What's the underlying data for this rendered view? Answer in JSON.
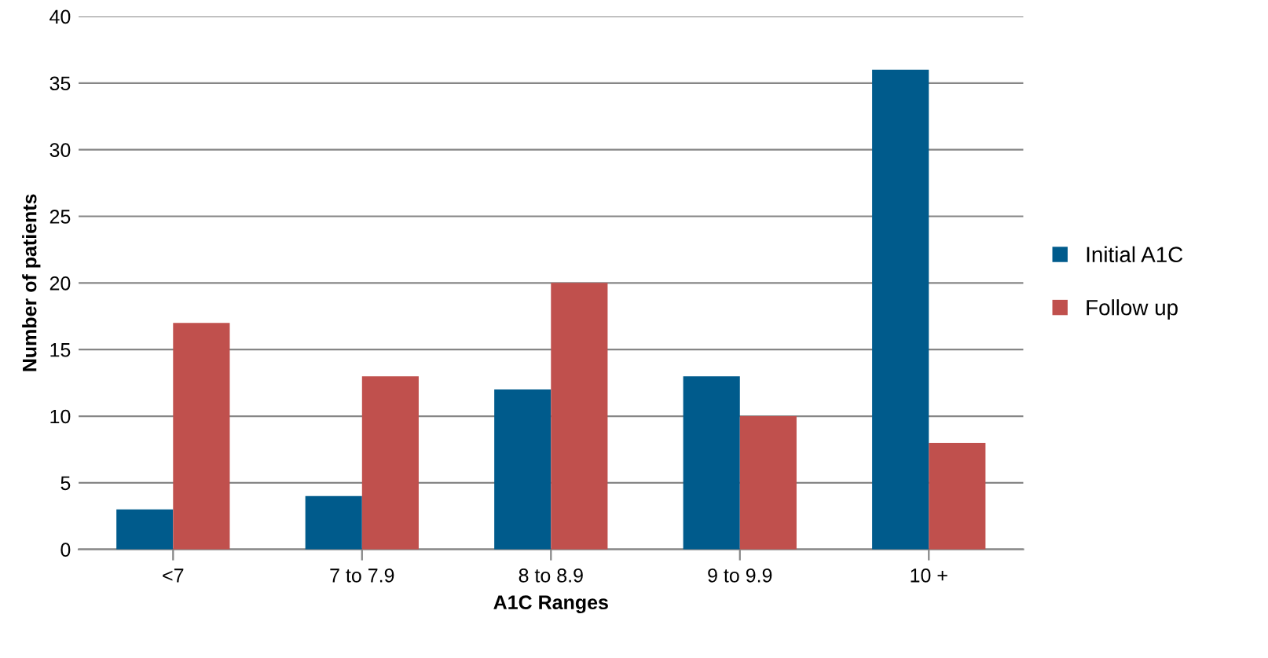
{
  "chart_data": {
    "type": "bar",
    "xlabel": "A1C Ranges",
    "ylabel": "Number of patients",
    "categories": [
      "<7",
      "7 to 7.9",
      "8 to 8.9",
      "9 to 9.9",
      "10 +"
    ],
    "series": [
      {
        "name": "Initial A1C",
        "color": "#005b8c",
        "values": [
          3,
          4,
          12,
          13,
          36
        ]
      },
      {
        "name": "Follow up",
        "color": "#c0504d",
        "values": [
          17,
          13,
          20,
          10,
          8
        ]
      }
    ],
    "ylim": [
      0,
      40
    ],
    "yticks": [
      0,
      5,
      10,
      15,
      20,
      25,
      30,
      35,
      40
    ],
    "grid": "y",
    "legend": "right"
  }
}
